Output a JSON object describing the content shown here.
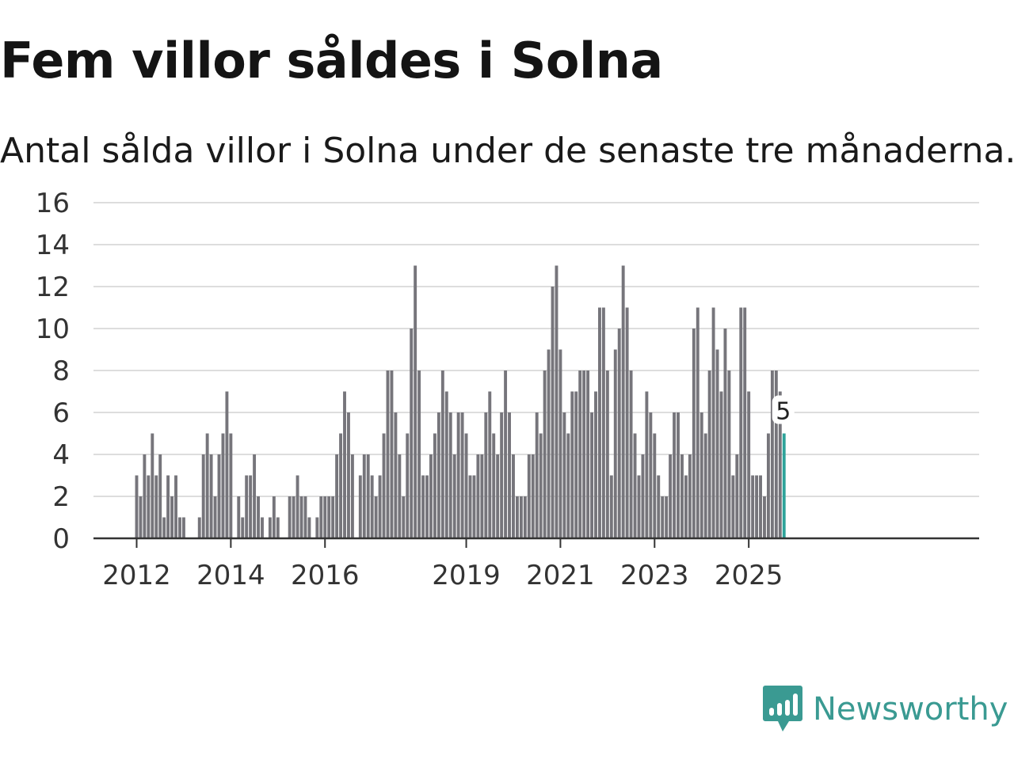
{
  "title": "Fem villor såldes i Solna",
  "subtitle": "Antal sålda villor i Solna under de senaste tre månaderna.",
  "brand": {
    "name": "Newsworthy",
    "icon": "bar-chart-speech-bubble-icon",
    "color": "#3a9a92"
  },
  "colors": {
    "bar": "#76757b",
    "highlight": "#2ea39a",
    "grid": "#dddddd",
    "axis": "#333333",
    "text": "#333333"
  },
  "chart_data": {
    "type": "bar",
    "title": "Fem villor såldes i Solna",
    "xlabel": "",
    "ylabel": "",
    "ylim": [
      0,
      16
    ],
    "yticks": [
      0,
      2,
      4,
      6,
      8,
      10,
      12,
      14,
      16
    ],
    "xtick_labels": [
      "2012",
      "2014",
      "2016",
      "2019",
      "2021",
      "2023",
      "2025"
    ],
    "xtick_years": [
      2012,
      2014,
      2016,
      2019,
      2021,
      2023,
      2025
    ],
    "start": {
      "year": 2012,
      "month": 1
    },
    "grid": true,
    "legend": "none",
    "highlight_last": true,
    "last_label": "5",
    "values": [
      3,
      2,
      4,
      3,
      5,
      3,
      4,
      1,
      3,
      2,
      3,
      1,
      1,
      0,
      0,
      0,
      1,
      4,
      5,
      4,
      2,
      4,
      5,
      7,
      5,
      0,
      2,
      1,
      3,
      3,
      4,
      2,
      1,
      0,
      1,
      2,
      1,
      0,
      0,
      2,
      2,
      3,
      2,
      2,
      1,
      0,
      1,
      2,
      2,
      2,
      2,
      4,
      5,
      7,
      6,
      4,
      0,
      3,
      4,
      4,
      3,
      2,
      3,
      5,
      8,
      8,
      6,
      4,
      2,
      5,
      10,
      13,
      8,
      3,
      3,
      4,
      5,
      6,
      8,
      7,
      6,
      4,
      6,
      6,
      5,
      3,
      3,
      4,
      4,
      6,
      7,
      5,
      4,
      6,
      8,
      6,
      4,
      2,
      2,
      2,
      4,
      4,
      6,
      5,
      8,
      9,
      12,
      13,
      9,
      6,
      5,
      7,
      7,
      8,
      8,
      8,
      6,
      7,
      11,
      11,
      8,
      3,
      9,
      10,
      13,
      11,
      8,
      5,
      3,
      4,
      7,
      6,
      5,
      3,
      2,
      2,
      4,
      6,
      6,
      4,
      3,
      4,
      10,
      11,
      6,
      5,
      8,
      11,
      9,
      7,
      10,
      8,
      3,
      4,
      11,
      11,
      7,
      3,
      3,
      3,
      2,
      5,
      8,
      8,
      7,
      5
    ]
  }
}
